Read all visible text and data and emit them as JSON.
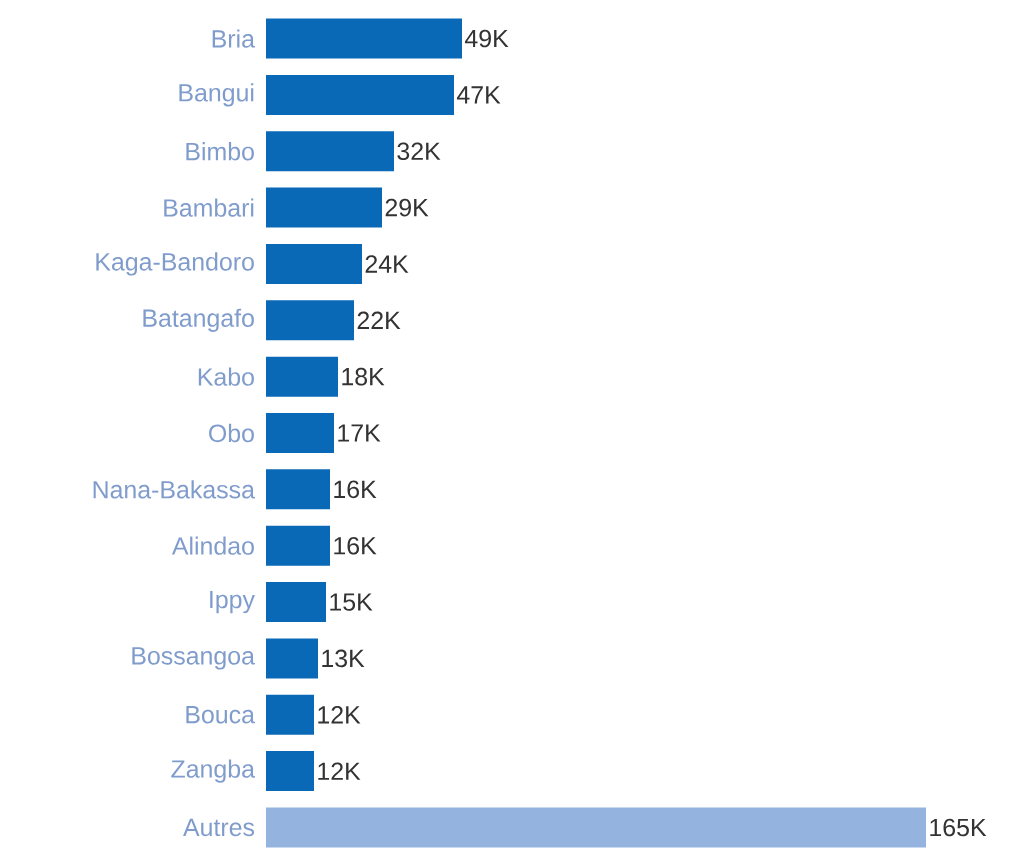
{
  "chart_data": {
    "type": "bar",
    "orientation": "horizontal",
    "categories": [
      "Bria",
      "Bangui",
      "Bimbo",
      "Bambari",
      "Kaga-Bandoro",
      "Batangafo",
      "Kabo",
      "Obo",
      "Nana-Bakassa",
      "Alindao",
      "Ippy",
      "Bossangoa",
      "Bouca",
      "Zangba",
      "Autres"
    ],
    "values": [
      49,
      47,
      32,
      29,
      24,
      22,
      18,
      17,
      16,
      16,
      15,
      13,
      12,
      12,
      165
    ],
    "value_labels": [
      "49K",
      "47K",
      "32K",
      "29K",
      "24K",
      "22K",
      "18K",
      "17K",
      "16K",
      "16K",
      "15K",
      "13K",
      "12K",
      "12K",
      "165K"
    ],
    "colors": [
      "#0a69b7",
      "#0a69b7",
      "#0a69b7",
      "#0a69b7",
      "#0a69b7",
      "#0a69b7",
      "#0a69b7",
      "#0a69b7",
      "#0a69b7",
      "#0a69b7",
      "#0a69b7",
      "#0a69b7",
      "#0a69b7",
      "#0a69b7",
      "#94b3de"
    ]
  }
}
